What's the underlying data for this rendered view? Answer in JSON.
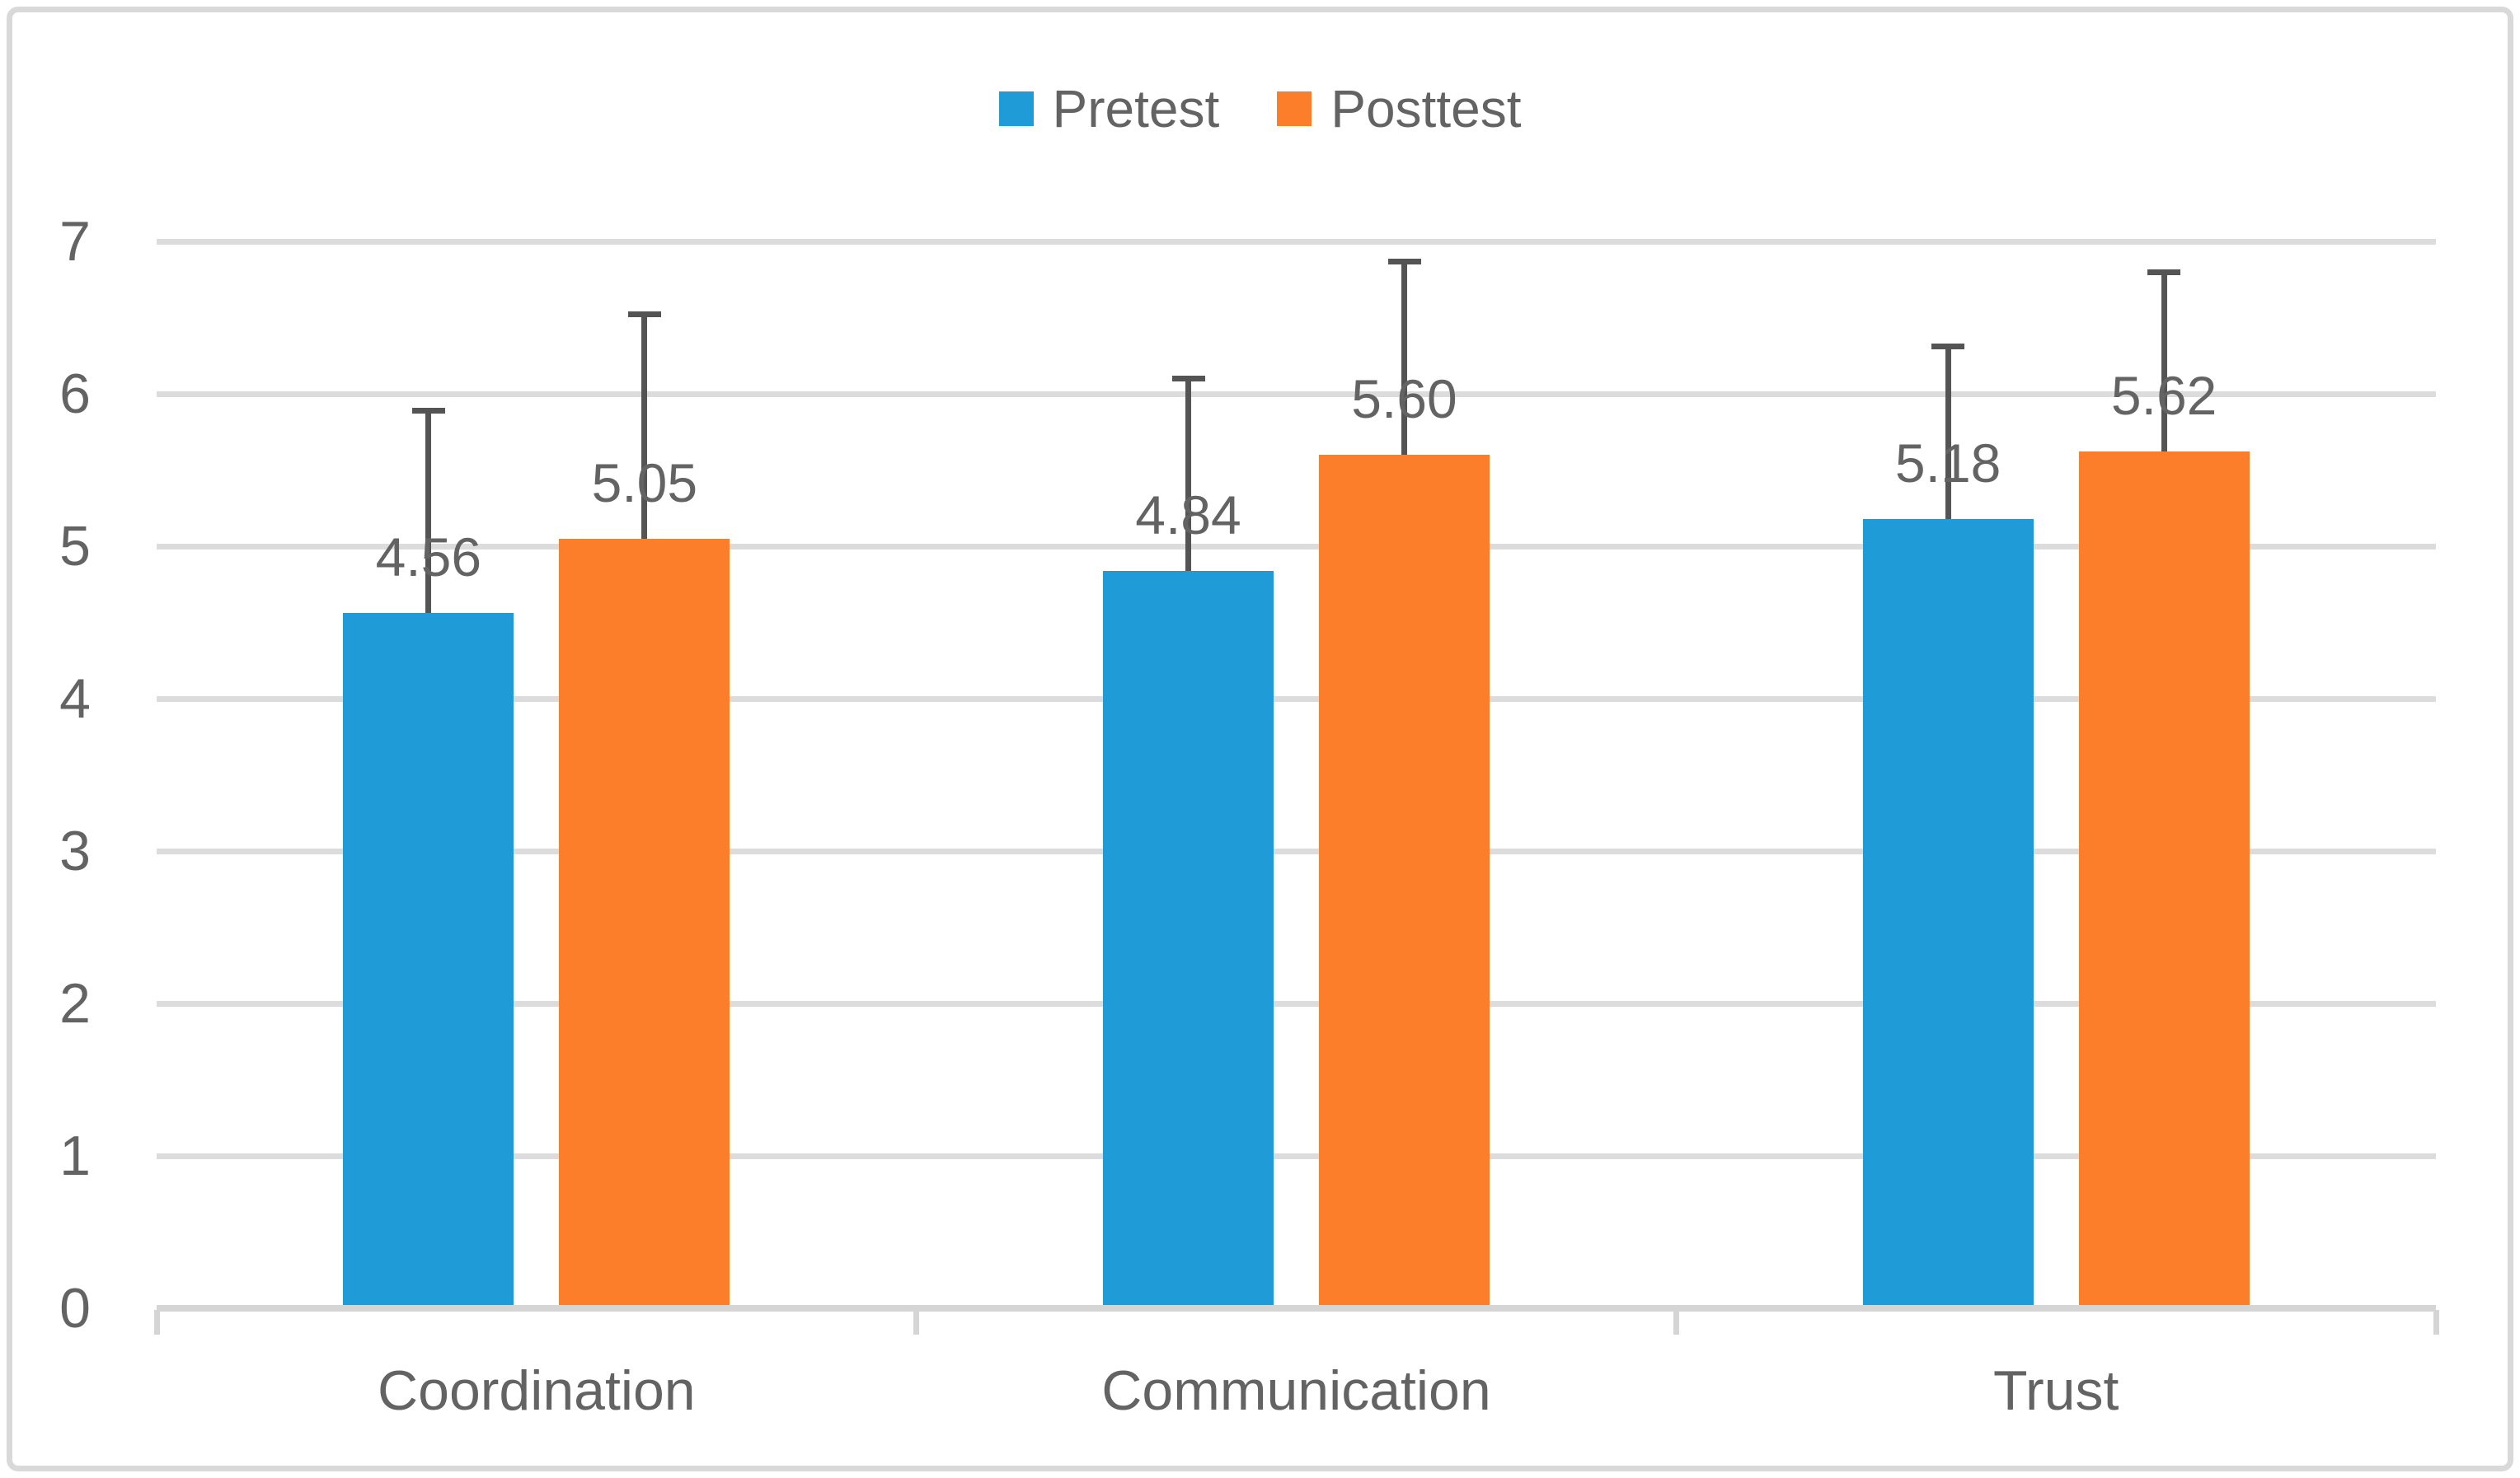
{
  "legend": {
    "items": [
      {
        "label": "Pretest",
        "color": "#1F9BD8"
      },
      {
        "label": "Posttest",
        "color": "#FD7E2A"
      }
    ]
  },
  "chart_data": {
    "type": "bar",
    "title": "",
    "categories": [
      "Coordination",
      "Communication",
      "Trust"
    ],
    "series": [
      {
        "name": "Pretest",
        "color": "#1F9BD8",
        "values": [
          4.56,
          4.84,
          5.18
        ],
        "value_labels": [
          "4.56",
          "4.84",
          "5.18"
        ],
        "errors_plus": [
          1.33,
          1.26,
          1.13
        ]
      },
      {
        "name": "Posttest",
        "color": "#FD7E2A",
        "values": [
          5.05,
          5.6,
          5.62
        ],
        "value_labels": [
          "5.05",
          "5.60",
          "5.62"
        ],
        "errors_plus": [
          1.47,
          1.27,
          1.18
        ]
      }
    ],
    "xlabel": "",
    "ylabel": "",
    "ylim": [
      0,
      7
    ],
    "yticks": [
      0,
      1,
      2,
      3,
      4,
      5,
      6,
      7
    ],
    "grid": true,
    "legend_position": "top",
    "error_bars": "plus-direction-only",
    "colors": {
      "text": "#636363",
      "gridline": "#DCDCDC",
      "axis_line": "#D5D5D5",
      "error_bar": "#545454",
      "frame_border": "#D9D9D9",
      "background": "#FFFFFF"
    }
  }
}
